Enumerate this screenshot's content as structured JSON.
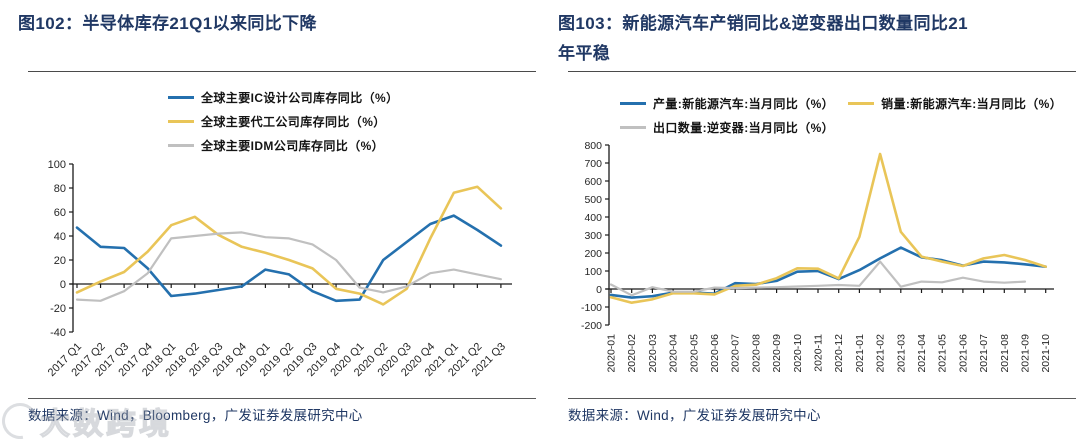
{
  "colors": {
    "title_navy": "#203864",
    "line_blue": "#2470AE",
    "line_yellow": "#E9C558",
    "line_gray": "#C0C0C0",
    "axis_black": "#1a1a1a"
  },
  "watermark": {
    "text": "大数跨境"
  },
  "chart_data": [
    {
      "type": "line",
      "title": "图102：半导体库存21Q1以来同比下降",
      "source": "数据来源：Wind，Bloomberg，广发证券发展研究中心",
      "legend_position": "top",
      "grid": false,
      "ylim": [
        -40,
        100
      ],
      "ytick_step": 20,
      "categories": [
        "2017 Q1",
        "2017 Q2",
        "2017 Q3",
        "2017 Q4",
        "2018 Q1",
        "2018 Q2",
        "2018 Q3",
        "2018 Q4",
        "2019 Q1",
        "2019 Q2",
        "2019 Q3",
        "2019 Q4",
        "2020 Q1",
        "2020 Q2",
        "2020 Q3",
        "2020 Q4",
        "2021 Q1",
        "2021 Q2",
        "2021 Q3"
      ],
      "series": [
        {
          "name": "全球主要IC设计公司库存同比（%）",
          "color": "#2470AE",
          "values": [
            47,
            31,
            30,
            13,
            -10,
            -8,
            -5,
            -2,
            12,
            8,
            -6,
            -14,
            -13,
            20,
            35,
            50,
            57,
            45,
            32
          ]
        },
        {
          "name": "全球主要代工公司库存同比（%）",
          "color": "#E9C558",
          "values": [
            -7,
            2,
            10,
            27,
            49,
            56,
            41,
            31,
            26,
            20,
            13,
            -4,
            -8,
            -17,
            -4,
            38,
            76,
            81,
            63
          ]
        },
        {
          "name": "全球主要IDM公司库存同比（%）",
          "color": "#C0C0C0",
          "values": [
            -13,
            -14,
            -6,
            9,
            38,
            40,
            42,
            43,
            39,
            38,
            33,
            20,
            -3,
            -7,
            -2,
            9,
            12,
            8,
            4
          ]
        }
      ]
    },
    {
      "type": "line",
      "title": "图103：新能源汽车产销同比&逆变器出口数量同比21年平稳",
      "source": "数据来源：Wind，广发证券发展研究中心",
      "legend_position": "top",
      "grid": false,
      "ylim": [
        -200,
        800
      ],
      "ytick_step": 100,
      "categories": [
        "2020-01",
        "2020-02",
        "2020-03",
        "2020-04",
        "2020-05",
        "2020-06",
        "2020-07",
        "2020-08",
        "2020-09",
        "2020-10",
        "2020-11",
        "2020-12",
        "2021-01",
        "2021-02",
        "2021-03",
        "2021-04",
        "2021-05",
        "2021-06",
        "2021-07",
        "2021-08",
        "2021-09",
        "2021-10"
      ],
      "series": [
        {
          "name": "产量:新能源汽车:当月同比（%）",
          "color": "#2470AE",
          "values": [
            -33,
            -48,
            -40,
            -20,
            -20,
            -26,
            32,
            28,
            45,
            96,
            100,
            55,
            105,
            170,
            230,
            176,
            160,
            130,
            152,
            148,
            137,
            124
          ]
        },
        {
          "name": "销量:新能源汽车:当月同比（%）",
          "color": "#E9C558",
          "values": [
            -46,
            -76,
            -57,
            -24,
            -24,
            -30,
            18,
            24,
            60,
            115,
            113,
            59,
            290,
            750,
            318,
            180,
            152,
            128,
            170,
            189,
            161,
            124
          ]
        },
        {
          "name": "出口数量:逆变器:当月同比（%）",
          "color": "#C0C0C0",
          "values": [
            25,
            -35,
            10,
            -15,
            -15,
            8,
            5,
            8,
            10,
            14,
            18,
            22,
            18,
            152,
            13,
            41,
            37,
            63,
            41,
            35,
            41,
            null
          ]
        }
      ]
    }
  ]
}
